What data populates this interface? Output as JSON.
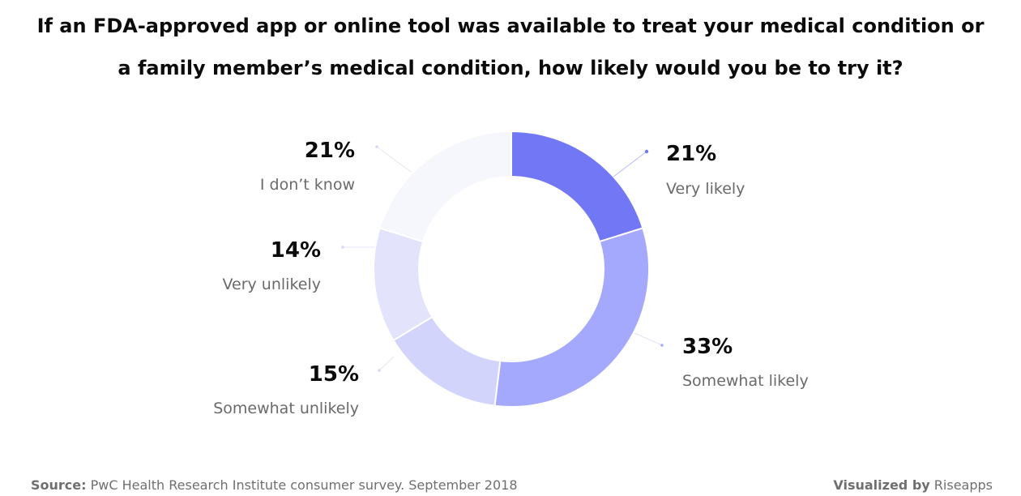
{
  "title": {
    "line1": "If an FDA-approved app or online tool was available to treat your medical condition or",
    "line2": "a family member’s medical condition, how likely would you be to try it?"
  },
  "chart_data": {
    "type": "donut",
    "title": "If an FDA-approved app or online tool was available to treat your medical condition or a family member’s medical condition, how likely would you be to try it?",
    "unit": "%",
    "slices": [
      {
        "label": "Very likely",
        "value": 21,
        "display": "21%",
        "color": "#7278f5"
      },
      {
        "label": "Somewhat likely",
        "value": 33,
        "display": "33%",
        "color": "#a5a9fd"
      },
      {
        "label": "Somewhat unlikely",
        "value": 15,
        "display": "15%",
        "color": "#d2d4fc"
      },
      {
        "label": "Very unlikely",
        "value": 14,
        "display": "14%",
        "color": "#e3e4fc"
      },
      {
        "label": "I don’t know",
        "value": 21,
        "display": "21%",
        "color": "#f6f6fd"
      }
    ]
  },
  "footer": {
    "source_label": "Source:",
    "source_text": "PwC Health Research Institute consumer survey. September 2018",
    "credit_label": "Visualized by",
    "credit_text": "Riseapps"
  }
}
